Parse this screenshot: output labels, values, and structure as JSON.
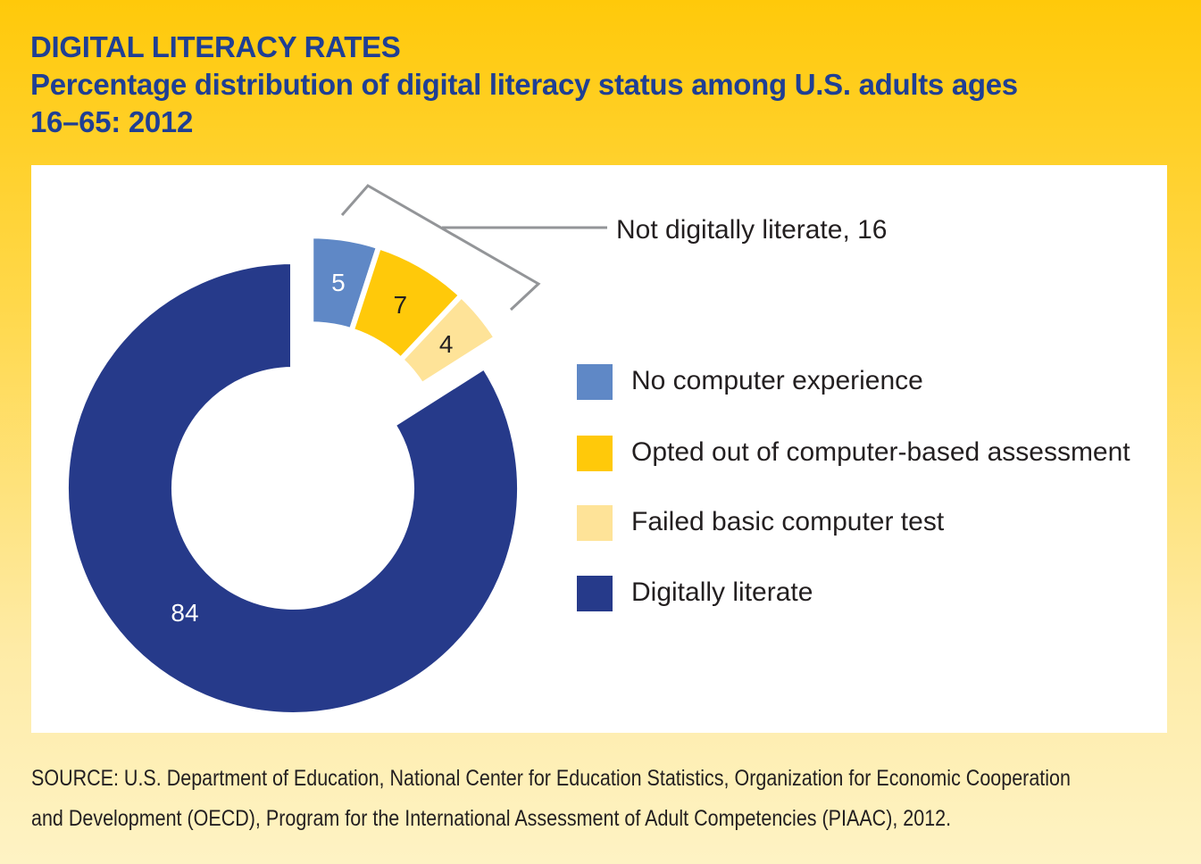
{
  "title": "DIGITAL LITERACY RATES",
  "subtitle_line1": "Percentage distribution of digital literacy status among U.S. adults ages",
  "subtitle_line2": "16–65: 2012",
  "source_line1": "SOURCE: U.S. Department of Education, National Center for Education Statistics, Organization for Economic Cooperation",
  "source_line2": "and Development (OECD), Program for the International Assessment of Adult Competencies (PIAAC), 2012.",
  "chart_data": {
    "type": "pie",
    "variant": "donut",
    "title": "DIGITAL LITERACY RATES",
    "legend_placement": "right",
    "slices": [
      {
        "label": "No computer experience",
        "value": 5,
        "color": "#5F88C6",
        "label_color": "#FFFFFF",
        "exploded": true
      },
      {
        "label": "Opted out of computer-based assessment",
        "value": 7,
        "color": "#FFC90A",
        "label_color": "#231F20",
        "exploded": true
      },
      {
        "label": "Failed basic computer test",
        "value": 4,
        "color": "#FEE398",
        "label_color": "#231F20",
        "exploded": true
      },
      {
        "label": "Digitally literate",
        "value": 84,
        "color": "#263A8A",
        "label_color": "#FFFFFF",
        "exploded": false
      }
    ],
    "annotation": "Not digitally literate, 16"
  }
}
